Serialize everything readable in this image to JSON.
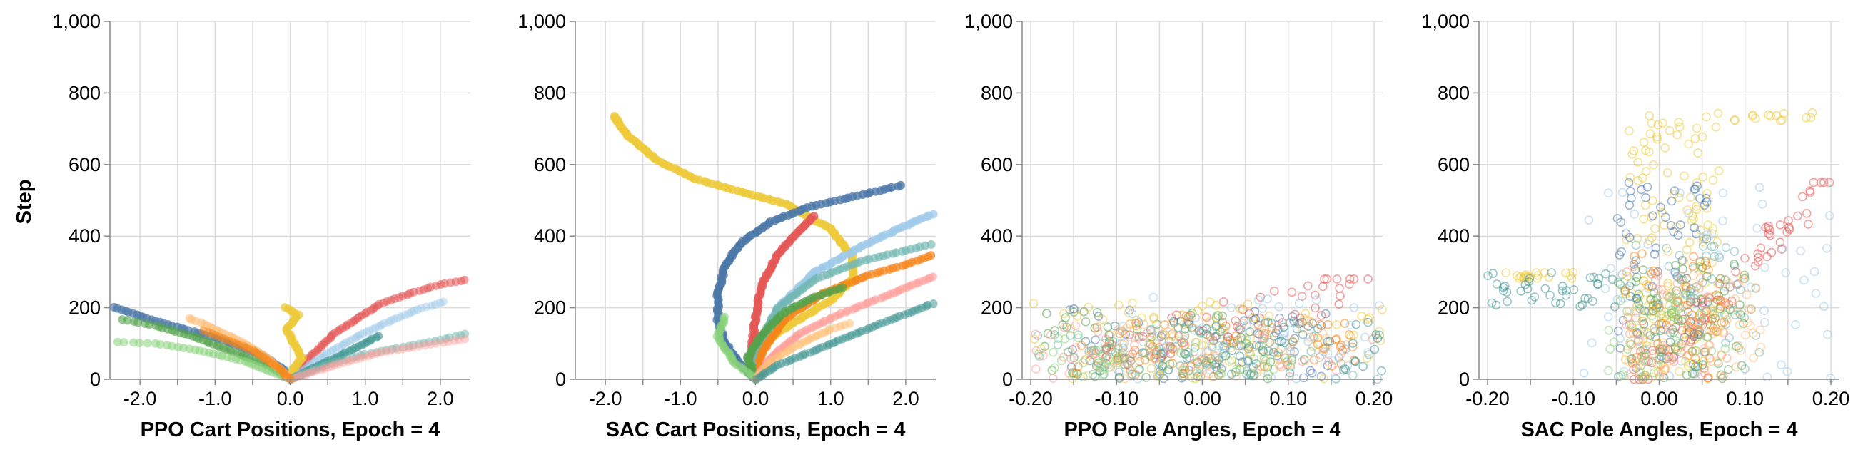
{
  "figure": {
    "y_axis_label": "Step"
  },
  "colors": [
    "#4c78a8",
    "#e45756",
    "#f58518",
    "#72b7b2",
    "#54a24b",
    "#eeca3b",
    "#9ecae9",
    "#ff9d98",
    "#88d27a",
    "#439894",
    "#ffbf79",
    "#b79a20"
  ],
  "chart_data": [
    {
      "type": "scatter",
      "title": "",
      "xlabel": "PPO Cart Positions, Epoch = 4",
      "ylabel": "Step",
      "xlim": [
        -2.4,
        2.4
      ],
      "ylim": [
        0,
        1000
      ],
      "x_ticks": [
        -2.0,
        -1.0,
        0.0,
        1.0,
        2.0
      ],
      "x_tick_labels": [
        "-2.0",
        "-1.0",
        "0.0",
        "1.0",
        "2.0"
      ],
      "y_ticks": [
        0,
        200,
        400,
        600,
        800,
        1000
      ],
      "y_tick_labels": [
        "0",
        "200",
        "400",
        "600",
        "800",
        "1,000"
      ],
      "grid": true,
      "marker": "filled",
      "series": [
        {
          "color": "#e45756",
          "opacity": 0.55,
          "points": [
            [
              0,
              0
            ],
            [
              0.2,
              50
            ],
            [
              0.6,
              130
            ],
            [
              0.9,
              170
            ],
            [
              1.2,
              210
            ],
            [
              1.6,
              240
            ],
            [
              2.0,
              265
            ],
            [
              2.4,
              280
            ]
          ]
        },
        {
          "color": "#9ecae9",
          "opacity": 0.45,
          "points": [
            [
              0,
              0
            ],
            [
              0.4,
              60
            ],
            [
              0.9,
              120
            ],
            [
              1.3,
              160
            ],
            [
              1.7,
              195
            ],
            [
              2.1,
              220
            ]
          ]
        },
        {
          "color": "#4c78a8",
          "opacity": 0.7,
          "points": [
            [
              0,
              0
            ],
            [
              -0.1,
              30
            ],
            [
              -0.4,
              70
            ],
            [
              -0.9,
              110
            ],
            [
              -1.4,
              140
            ],
            [
              -1.9,
              170
            ],
            [
              -2.4,
              205
            ]
          ]
        },
        {
          "color": "#54a24b",
          "opacity": 0.6,
          "points": [
            [
              0,
              0
            ],
            [
              -0.3,
              40
            ],
            [
              -0.8,
              80
            ],
            [
              -1.3,
              120
            ],
            [
              -1.8,
              150
            ],
            [
              -2.3,
              170
            ]
          ]
        },
        {
          "color": "#88d27a",
          "opacity": 0.55,
          "points": [
            [
              0,
              0
            ],
            [
              -0.6,
              50
            ],
            [
              -1.2,
              80
            ],
            [
              -1.8,
              100
            ],
            [
              -2.4,
              105
            ]
          ]
        },
        {
          "color": "#eeca3b",
          "opacity": 0.75,
          "points": [
            [
              0,
              0
            ],
            [
              0.05,
              30
            ],
            [
              0.15,
              60
            ],
            [
              0.05,
              100
            ],
            [
              -0.05,
              140
            ],
            [
              0.1,
              180
            ],
            [
              -0.1,
              205
            ]
          ]
        },
        {
          "color": "#ffbf79",
          "opacity": 0.6,
          "points": [
            [
              0,
              0
            ],
            [
              -0.3,
              60
            ],
            [
              -0.7,
              110
            ],
            [
              -1.1,
              150
            ],
            [
              -1.4,
              175
            ]
          ]
        },
        {
          "color": "#439894",
          "opacity": 0.65,
          "points": [
            [
              0,
              0
            ],
            [
              0.3,
              30
            ],
            [
              0.7,
              70
            ],
            [
              1.0,
              100
            ],
            [
              1.2,
              125
            ]
          ]
        },
        {
          "color": "#72b7b2",
          "opacity": 0.5,
          "points": [
            [
              0,
              0
            ],
            [
              0.5,
              40
            ],
            [
              1.0,
              70
            ],
            [
              1.5,
              90
            ],
            [
              2.0,
              110
            ],
            [
              2.4,
              130
            ]
          ]
        },
        {
          "color": "#ff9d98",
          "opacity": 0.45,
          "points": [
            [
              0,
              0
            ],
            [
              0.6,
              40
            ],
            [
              1.2,
              75
            ],
            [
              1.8,
              95
            ],
            [
              2.4,
              115
            ]
          ]
        },
        {
          "color": "#f58518",
          "opacity": 0.5,
          "points": [
            [
              0,
              0
            ],
            [
              -0.2,
              40
            ],
            [
              -0.5,
              80
            ],
            [
              -0.9,
              115
            ],
            [
              -1.2,
              140
            ]
          ]
        }
      ]
    },
    {
      "type": "scatter",
      "title": "",
      "xlabel": "SAC Cart Positions, Epoch = 4",
      "ylabel": "",
      "xlim": [
        -2.4,
        2.4
      ],
      "ylim": [
        0,
        1000
      ],
      "x_ticks": [
        -2.0,
        -1.0,
        0.0,
        1.0,
        2.0
      ],
      "x_tick_labels": [
        "-2.0",
        "-1.0",
        "0.0",
        "1.0",
        "2.0"
      ],
      "y_ticks": [
        0,
        200,
        400,
        600,
        800,
        1000
      ],
      "y_tick_labels": [
        "0",
        "200",
        "400",
        "600",
        "800",
        "1,000"
      ],
      "grid": true,
      "marker": "filled",
      "series": [
        {
          "color": "#eeca3b",
          "opacity": 0.85,
          "points": [
            [
              0,
              0
            ],
            [
              -0.1,
              30
            ],
            [
              0,
              60
            ],
            [
              0.1,
              90
            ],
            [
              0.3,
              130
            ],
            [
              0.6,
              170
            ],
            [
              1.0,
              220
            ],
            [
              1.3,
              280
            ],
            [
              1.3,
              340
            ],
            [
              1.0,
              420
            ],
            [
              0.4,
              490
            ],
            [
              -0.3,
              530
            ],
            [
              -0.8,
              560
            ],
            [
              -1.3,
              610
            ],
            [
              -1.7,
              680
            ],
            [
              -1.9,
              740
            ]
          ]
        },
        {
          "color": "#4c78a8",
          "opacity": 0.8,
          "points": [
            [
              0,
              0
            ],
            [
              -0.2,
              40
            ],
            [
              -0.4,
              100
            ],
            [
              -0.5,
              160
            ],
            [
              -0.5,
              240
            ],
            [
              -0.4,
              320
            ],
            [
              -0.2,
              380
            ],
            [
              0.2,
              440
            ],
            [
              0.7,
              480
            ],
            [
              1.3,
              510
            ],
            [
              2.0,
              545
            ]
          ]
        },
        {
          "color": "#e45756",
          "opacity": 0.8,
          "points": [
            [
              0,
              0
            ],
            [
              -0.05,
              80
            ],
            [
              0,
              180
            ],
            [
              0.1,
              270
            ],
            [
              0.3,
              350
            ],
            [
              0.6,
              420
            ],
            [
              0.8,
              460
            ]
          ]
        },
        {
          "color": "#9ecae9",
          "opacity": 0.75,
          "points": [
            [
              0,
              0
            ],
            [
              0.1,
              100
            ],
            [
              0.3,
              200
            ],
            [
              0.8,
              300
            ],
            [
              1.4,
              370
            ],
            [
              1.9,
              420
            ],
            [
              2.4,
              465
            ]
          ]
        },
        {
          "color": "#72b7b2",
          "opacity": 0.65,
          "points": [
            [
              0,
              0
            ],
            [
              0.05,
              100
            ],
            [
              0.3,
              200
            ],
            [
              0.8,
              280
            ],
            [
              1.4,
              330
            ],
            [
              2.0,
              360
            ],
            [
              2.4,
              380
            ]
          ]
        },
        {
          "color": "#f58518",
          "opacity": 0.7,
          "points": [
            [
              0,
              0
            ],
            [
              0.1,
              80
            ],
            [
              0.4,
              170
            ],
            [
              0.9,
              240
            ],
            [
              1.5,
              290
            ],
            [
              2.0,
              320
            ],
            [
              2.4,
              350
            ]
          ]
        },
        {
          "color": "#54a24b",
          "opacity": 0.7,
          "points": [
            [
              0,
              0
            ],
            [
              -0.1,
              60
            ],
            [
              0.1,
              130
            ],
            [
              0.4,
              190
            ],
            [
              0.8,
              230
            ],
            [
              1.2,
              260
            ]
          ]
        },
        {
          "color": "#ff9d98",
          "opacity": 0.6,
          "points": [
            [
              0,
              0
            ],
            [
              0.2,
              60
            ],
            [
              0.6,
              130
            ],
            [
              1.1,
              180
            ],
            [
              1.7,
              230
            ],
            [
              2.4,
              290
            ]
          ]
        },
        {
          "color": "#88d27a",
          "opacity": 0.6,
          "points": [
            [
              0,
              0
            ],
            [
              -0.3,
              50
            ],
            [
              -0.5,
              120
            ],
            [
              -0.4,
              180
            ]
          ]
        },
        {
          "color": "#ffbf79",
          "opacity": 0.55,
          "points": [
            [
              0,
              0
            ],
            [
              0.2,
              50
            ],
            [
              0.6,
              100
            ],
            [
              1.0,
              140
            ],
            [
              1.3,
              160
            ]
          ]
        },
        {
          "color": "#439894",
          "opacity": 0.55,
          "points": [
            [
              0,
              0
            ],
            [
              0.3,
              40
            ],
            [
              0.9,
              90
            ],
            [
              1.6,
              150
            ],
            [
              2.4,
              215
            ]
          ]
        }
      ]
    },
    {
      "type": "scatter",
      "title": "",
      "xlabel": "PPO Pole Angles, Epoch = 4",
      "ylabel": "",
      "xlim": [
        -0.21,
        0.21
      ],
      "ylim": [
        0,
        1000
      ],
      "x_ticks": [
        -0.2,
        -0.1,
        0.0,
        0.1,
        0.2
      ],
      "x_tick_labels": [
        "-0.20",
        "-0.10",
        "0.00",
        "0.10",
        "0.20"
      ],
      "y_ticks": [
        0,
        200,
        400,
        600,
        800,
        1000
      ],
      "y_tick_labels": [
        "0",
        "200",
        "400",
        "600",
        "800",
        "1,000"
      ],
      "grid": true,
      "marker": "open",
      "clouds": [
        {
          "color": "#e45756",
          "n": 70,
          "x": [
            -0.12,
            0.21
          ],
          "y": [
            60,
            280
          ],
          "slope": 400
        },
        {
          "color": "#4c78a8",
          "n": 70,
          "x": [
            -0.18,
            0.15
          ],
          "y": [
            0,
            200
          ]
        },
        {
          "color": "#54a24b",
          "n": 80,
          "x": [
            -0.2,
            0.12
          ],
          "y": [
            0,
            190
          ]
        },
        {
          "color": "#eeca3b",
          "n": 80,
          "x": [
            -0.2,
            0.21
          ],
          "y": [
            0,
            220
          ]
        },
        {
          "color": "#f58518",
          "n": 60,
          "x": [
            -0.15,
            0.18
          ],
          "y": [
            0,
            180
          ]
        },
        {
          "color": "#72b7b2",
          "n": 60,
          "x": [
            -0.2,
            0.21
          ],
          "y": [
            0,
            140
          ]
        },
        {
          "color": "#9ecae9",
          "n": 60,
          "x": [
            -0.1,
            0.21
          ],
          "y": [
            0,
            230
          ]
        },
        {
          "color": "#ff9d98",
          "n": 50,
          "x": [
            -0.2,
            0.2
          ],
          "y": [
            0,
            150
          ]
        },
        {
          "color": "#88d27a",
          "n": 50,
          "x": [
            -0.2,
            0.1
          ],
          "y": [
            0,
            120
          ]
        },
        {
          "color": "#439894",
          "n": 50,
          "x": [
            -0.05,
            0.21
          ],
          "y": [
            0,
            160
          ]
        },
        {
          "color": "#ffbf79",
          "n": 50,
          "x": [
            -0.1,
            0.15
          ],
          "y": [
            0,
            180
          ]
        }
      ]
    },
    {
      "type": "scatter",
      "title": "",
      "xlabel": "SAC Pole Angles, Epoch = 4",
      "ylabel": "",
      "xlim": [
        -0.21,
        0.21
      ],
      "ylim": [
        0,
        1000
      ],
      "x_ticks": [
        -0.2,
        -0.1,
        0.0,
        0.1,
        0.2
      ],
      "x_tick_labels": [
        "-0.20",
        "-0.10",
        "0.00",
        "0.10",
        "0.20"
      ],
      "y_ticks": [
        0,
        200,
        400,
        600,
        800,
        1000
      ],
      "y_tick_labels": [
        "0",
        "200",
        "400",
        "600",
        "800",
        "1,000"
      ],
      "grid": true,
      "marker": "open",
      "clouds": [
        {
          "color": "#eeca3b",
          "n": 160,
          "x": [
            -0.04,
            0.07
          ],
          "y": [
            0,
            740
          ]
        },
        {
          "color": "#eeca3b",
          "n": 20,
          "x": [
            -0.18,
            -0.1
          ],
          "y": [
            280,
            300
          ]
        },
        {
          "color": "#eeca3b",
          "n": 15,
          "x": [
            0.05,
            0.18
          ],
          "y": [
            720,
            745
          ]
        },
        {
          "color": "#4c78a8",
          "n": 80,
          "x": [
            -0.05,
            0.06
          ],
          "y": [
            0,
            550
          ]
        },
        {
          "color": "#e45756",
          "n": 70,
          "x": [
            -0.03,
            0.2
          ],
          "y": [
            0,
            550
          ],
          "slope": 1800
        },
        {
          "color": "#9ecae9",
          "n": 60,
          "x": [
            -0.1,
            0.2
          ],
          "y": [
            0,
            550
          ]
        },
        {
          "color": "#72b7b2",
          "n": 60,
          "x": [
            -0.05,
            0.12
          ],
          "y": [
            0,
            380
          ]
        },
        {
          "color": "#439894",
          "n": 40,
          "x": [
            -0.2,
            -0.05
          ],
          "y": [
            200,
            300
          ]
        },
        {
          "color": "#54a24b",
          "n": 60,
          "x": [
            -0.05,
            0.1
          ],
          "y": [
            0,
            330
          ]
        },
        {
          "color": "#f58518",
          "n": 60,
          "x": [
            -0.04,
            0.08
          ],
          "y": [
            0,
            360
          ]
        },
        {
          "color": "#ff9d98",
          "n": 50,
          "x": [
            -0.04,
            0.08
          ],
          "y": [
            0,
            300
          ]
        },
        {
          "color": "#88d27a",
          "n": 50,
          "x": [
            -0.06,
            0.08
          ],
          "y": [
            0,
            250
          ]
        },
        {
          "color": "#ffbf79",
          "n": 50,
          "x": [
            -0.04,
            0.12
          ],
          "y": [
            0,
            300
          ]
        }
      ]
    }
  ]
}
